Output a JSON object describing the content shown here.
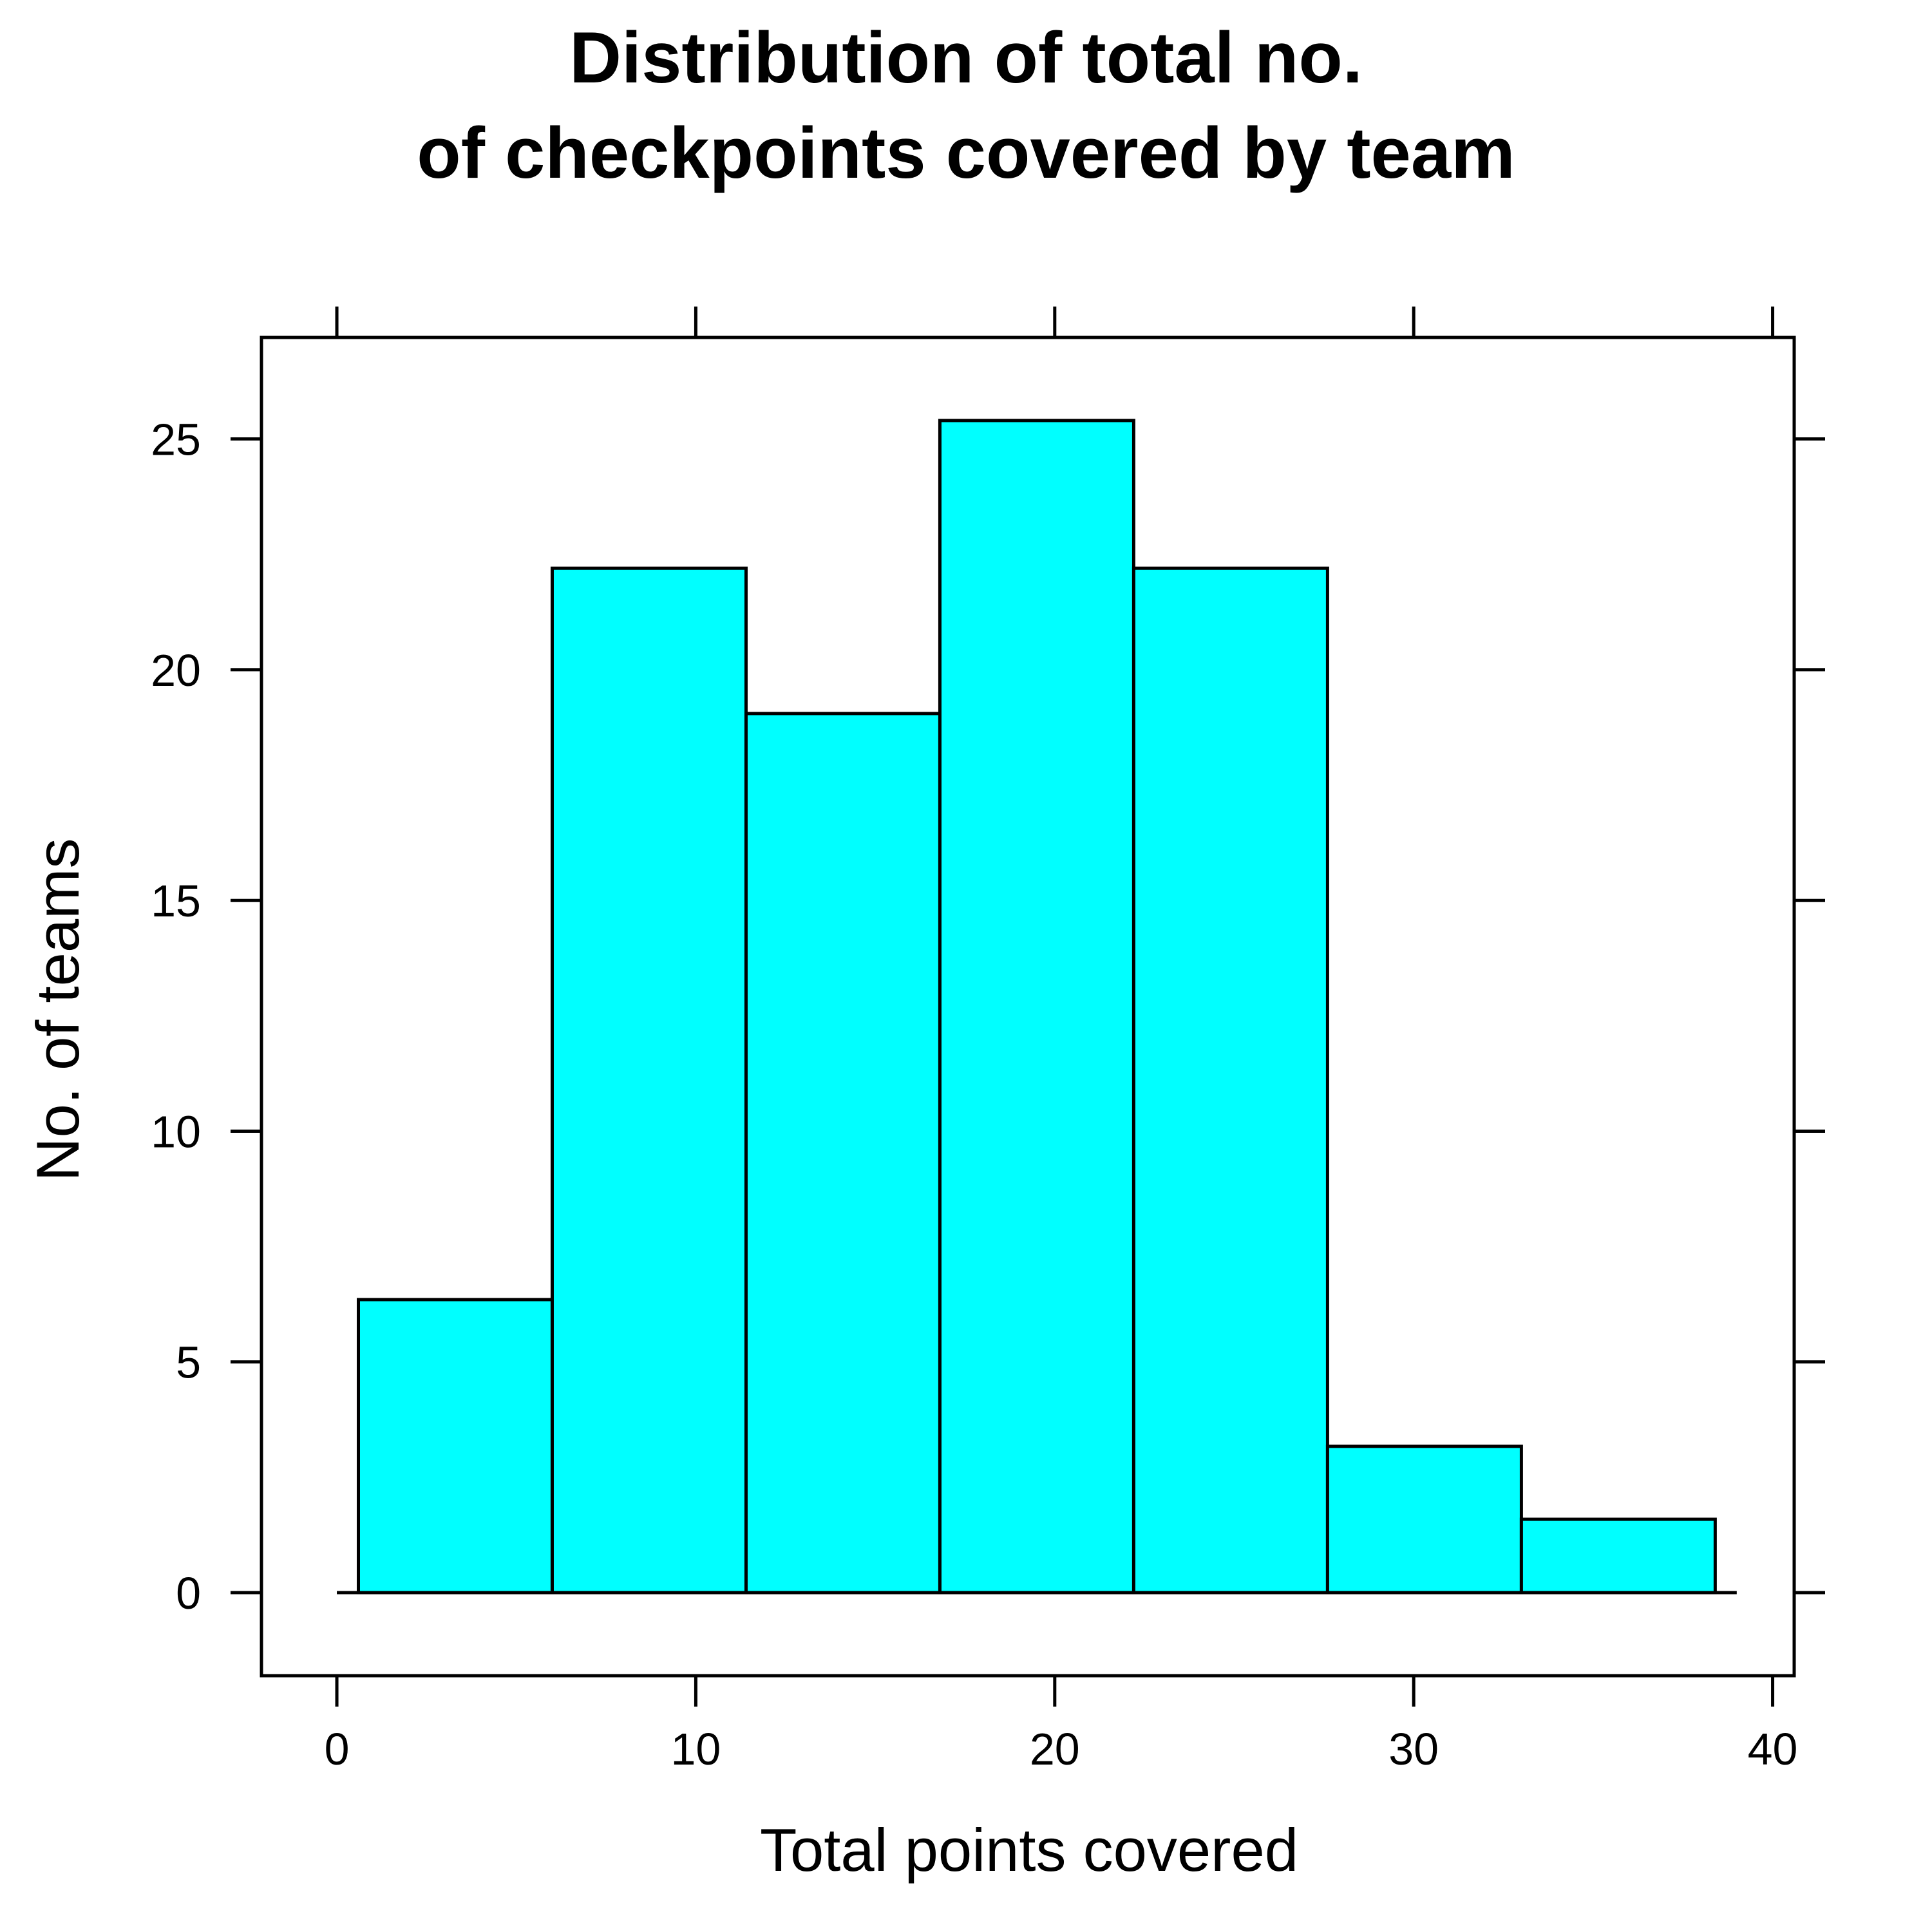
{
  "chart_data": {
    "type": "bar",
    "subtype": "histogram",
    "title_lines": [
      "Distribution of total no.",
      "of checkpoints covered by team"
    ],
    "xlabel": "Total points covered",
    "ylabel": "No. of teams",
    "bins": [
      {
        "x0": 0.6,
        "x1": 6.0,
        "value": 6.35
      },
      {
        "x0": 6.0,
        "x1": 11.4,
        "value": 22.2
      },
      {
        "x0": 11.4,
        "x1": 16.8,
        "value": 19.05
      },
      {
        "x0": 16.8,
        "x1": 22.2,
        "value": 25.4
      },
      {
        "x0": 22.2,
        "x1": 27.6,
        "value": 22.2
      },
      {
        "x0": 27.6,
        "x1": 33.0,
        "value": 3.17
      },
      {
        "x0": 33.0,
        "x1": 38.4,
        "value": 1.59
      }
    ],
    "xlim": [
      -2.1,
      40.6
    ],
    "ylim": [
      -1.8,
      27.2
    ],
    "xticks": [
      0,
      10,
      20,
      30,
      40
    ],
    "yticks": [
      0,
      5,
      10,
      15,
      20,
      25
    ],
    "bar_color": "#00FFFF",
    "grid": false,
    "legend": "none"
  }
}
